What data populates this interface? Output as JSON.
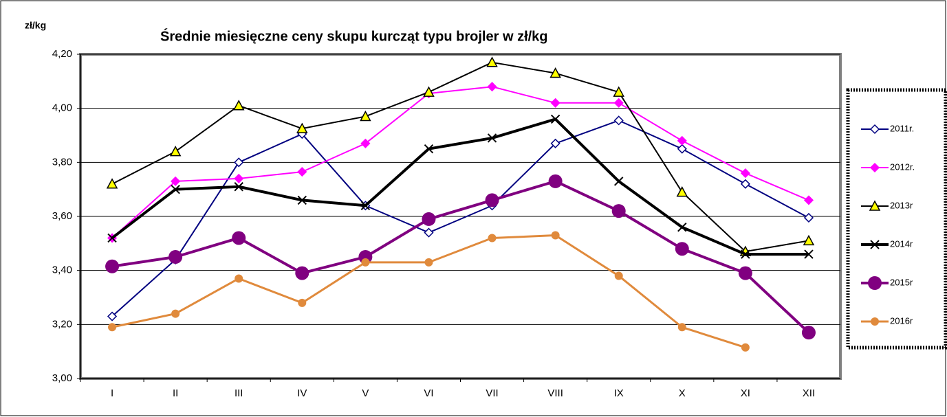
{
  "chart_data": {
    "type": "line",
    "title": "Średnie miesięczne ceny skupu kurcząt typu brojler w zł/kg",
    "y_label": "zł/kg",
    "categories": [
      "I",
      "II",
      "III",
      "IV",
      "V",
      "VI",
      "VII",
      "VIII",
      "IX",
      "X",
      "XI",
      "XII"
    ],
    "ylim": [
      3.0,
      4.2
    ],
    "yticks": [
      {
        "value": 3.0,
        "label": "3,00"
      },
      {
        "value": 3.2,
        "label": "3,20"
      },
      {
        "value": 3.4,
        "label": "3,40"
      },
      {
        "value": 3.6,
        "label": "3,60"
      },
      {
        "value": 3.8,
        "label": "3,80"
      },
      {
        "value": 4.0,
        "label": "4,00"
      },
      {
        "value": 4.2,
        "label": "4,20"
      }
    ],
    "grid": true,
    "legend": "right",
    "series": [
      {
        "name": "2011r.",
        "color": "#000080",
        "line_width": 2,
        "marker": "diamond",
        "marker_fill": "#ffffff",
        "values": [
          3.23,
          3.44,
          3.8,
          3.905,
          3.64,
          3.54,
          3.64,
          3.87,
          3.955,
          3.85,
          3.72,
          3.595
        ]
      },
      {
        "name": "2012r.",
        "color": "#ff00ff",
        "line_width": 2,
        "marker": "diamond",
        "marker_fill": "#ff00ff",
        "values": [
          3.52,
          3.73,
          3.74,
          3.765,
          3.87,
          4.055,
          4.08,
          4.02,
          4.02,
          3.88,
          3.76,
          3.66
        ]
      },
      {
        "name": "2013r",
        "color": "#000000",
        "line_width": 2,
        "marker": "triangle",
        "marker_fill": "#ffff00",
        "values": [
          3.72,
          3.84,
          4.01,
          3.925,
          3.97,
          4.06,
          4.17,
          4.13,
          4.06,
          3.69,
          3.47,
          3.51
        ]
      },
      {
        "name": "2014r",
        "color": "#000000",
        "line_width": 4,
        "marker": "cross",
        "marker_fill": "#000000",
        "values": [
          3.52,
          3.7,
          3.71,
          3.66,
          3.64,
          3.85,
          3.89,
          3.96,
          3.73,
          3.56,
          3.46,
          3.46
        ]
      },
      {
        "name": "2015r",
        "color": "#800080",
        "line_width": 4,
        "marker": "bigcircle",
        "marker_fill": "#800080",
        "values": [
          3.415,
          3.45,
          3.52,
          3.39,
          3.45,
          3.59,
          3.66,
          3.73,
          3.62,
          3.48,
          3.39,
          3.17
        ]
      },
      {
        "name": "2016r",
        "color": "#e08a3c",
        "line_width": 3,
        "marker": "circle",
        "marker_fill": "#e08a3c",
        "values": [
          3.19,
          3.24,
          3.37,
          3.28,
          3.43,
          3.43,
          3.52,
          3.53,
          3.38,
          3.19,
          3.115,
          null
        ]
      }
    ]
  }
}
